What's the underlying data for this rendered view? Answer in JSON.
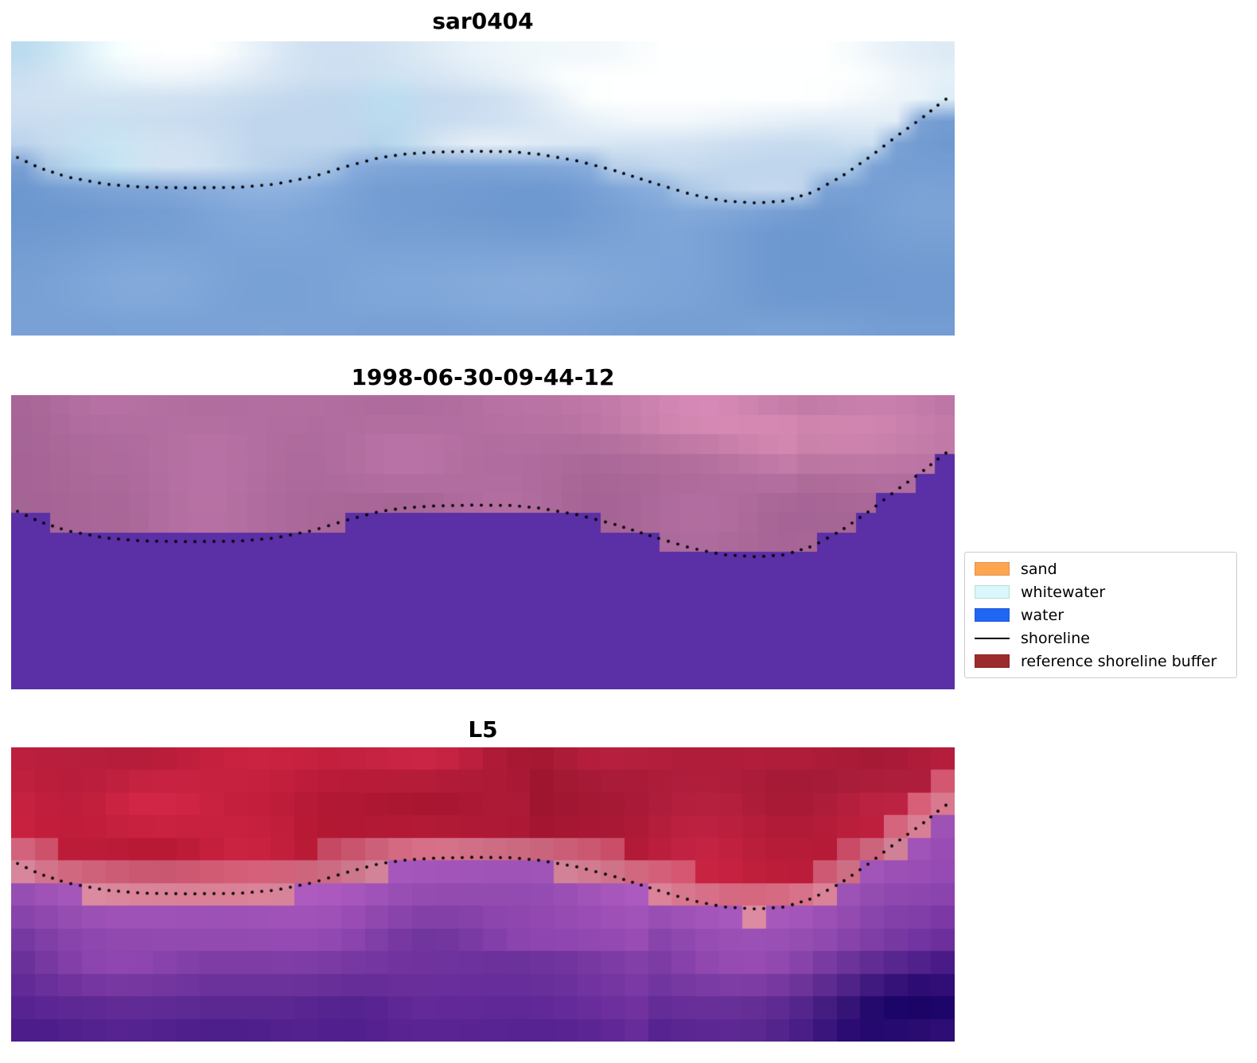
{
  "panels": [
    {
      "title": "sar0404"
    },
    {
      "title": "1998-06-30-09-44-12"
    },
    {
      "title": "L5"
    }
  ],
  "legend": {
    "items": [
      {
        "label": "sand",
        "type": "patch",
        "color": "#FFA552"
      },
      {
        "label": "whitewater",
        "type": "patch",
        "color": "#D9F7FD"
      },
      {
        "label": "water",
        "type": "patch",
        "color": "#2166F3"
      },
      {
        "label": "shoreline",
        "type": "line",
        "color": "#000000"
      },
      {
        "label": "reference shoreline buffer",
        "type": "patch",
        "color": "#9C2B2B"
      }
    ]
  },
  "chart_data": {
    "type": "heatmap",
    "title": "",
    "subtitle": "Three coastal satellite image panels with a detected shoreline overlaid as a black dotted line",
    "panels": [
      {
        "title": "sar0404",
        "kind": "SAR satellite image",
        "region_colors": {
          "water": "#7AA2D6",
          "land_clouds": "#E2EEF7",
          "cloud_bright": "#FFFFFF"
        }
      },
      {
        "title": "1998-06-30-09-44-12",
        "kind": "classified satellite image",
        "region_colors": {
          "below_shoreline": "#5B2FA5",
          "above_shoreline": "#B06C9E",
          "bright_patch": "#D28CB4"
        }
      },
      {
        "title": "L5",
        "kind": "Landsat-5 false colour composite",
        "region_colors": {
          "top": "#C6203E",
          "transition": "#D98BA0",
          "bottom": "#6E2BA4"
        }
      }
    ],
    "shoreline_points_normalized": [
      [
        0.0,
        0.385
      ],
      [
        0.03,
        0.43
      ],
      [
        0.06,
        0.46
      ],
      [
        0.1,
        0.482
      ],
      [
        0.14,
        0.492
      ],
      [
        0.19,
        0.497
      ],
      [
        0.24,
        0.498
      ],
      [
        0.28,
        0.487
      ],
      [
        0.32,
        0.462
      ],
      [
        0.355,
        0.428
      ],
      [
        0.39,
        0.398
      ],
      [
        0.42,
        0.383
      ],
      [
        0.45,
        0.375
      ],
      [
        0.49,
        0.37
      ],
      [
        0.53,
        0.372
      ],
      [
        0.56,
        0.383
      ],
      [
        0.6,
        0.408
      ],
      [
        0.64,
        0.442
      ],
      [
        0.68,
        0.483
      ],
      [
        0.72,
        0.522
      ],
      [
        0.755,
        0.545
      ],
      [
        0.79,
        0.552
      ],
      [
        0.82,
        0.545
      ],
      [
        0.85,
        0.515
      ],
      [
        0.88,
        0.462
      ],
      [
        0.91,
        0.395
      ],
      [
        0.94,
        0.32
      ],
      [
        0.965,
        0.262
      ],
      [
        0.985,
        0.21
      ],
      [
        1.0,
        0.175
      ]
    ],
    "legend_entries": [
      "sand",
      "whitewater",
      "water",
      "shoreline",
      "reference shoreline buffer"
    ]
  }
}
